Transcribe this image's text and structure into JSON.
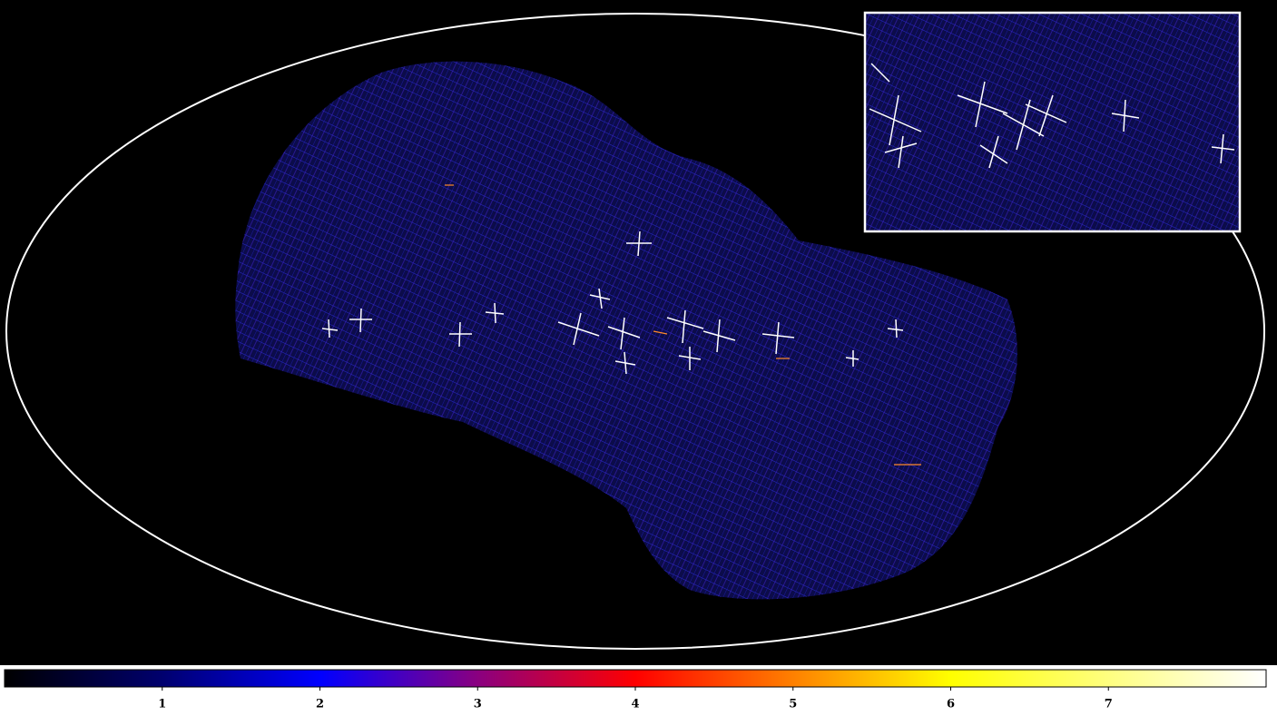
{
  "chart_data": {
    "type": "colorbar",
    "colorbar": {
      "lim": [
        0,
        8
      ],
      "ticks": [
        1,
        2,
        3,
        4,
        5,
        6,
        7
      ],
      "colormap": [
        {
          "value": 0,
          "color": "#000000"
        },
        {
          "value": 1,
          "color": "#00006e"
        },
        {
          "value": 2,
          "color": "#0000ff"
        },
        {
          "value": 3,
          "color": "#8a0080"
        },
        {
          "value": 4,
          "color": "#ff0000"
        },
        {
          "value": 5,
          "color": "#ff8000"
        },
        {
          "value": 6,
          "color": "#ffff00"
        },
        {
          "value": 8,
          "color": "#ffffff"
        }
      ]
    }
  }
}
